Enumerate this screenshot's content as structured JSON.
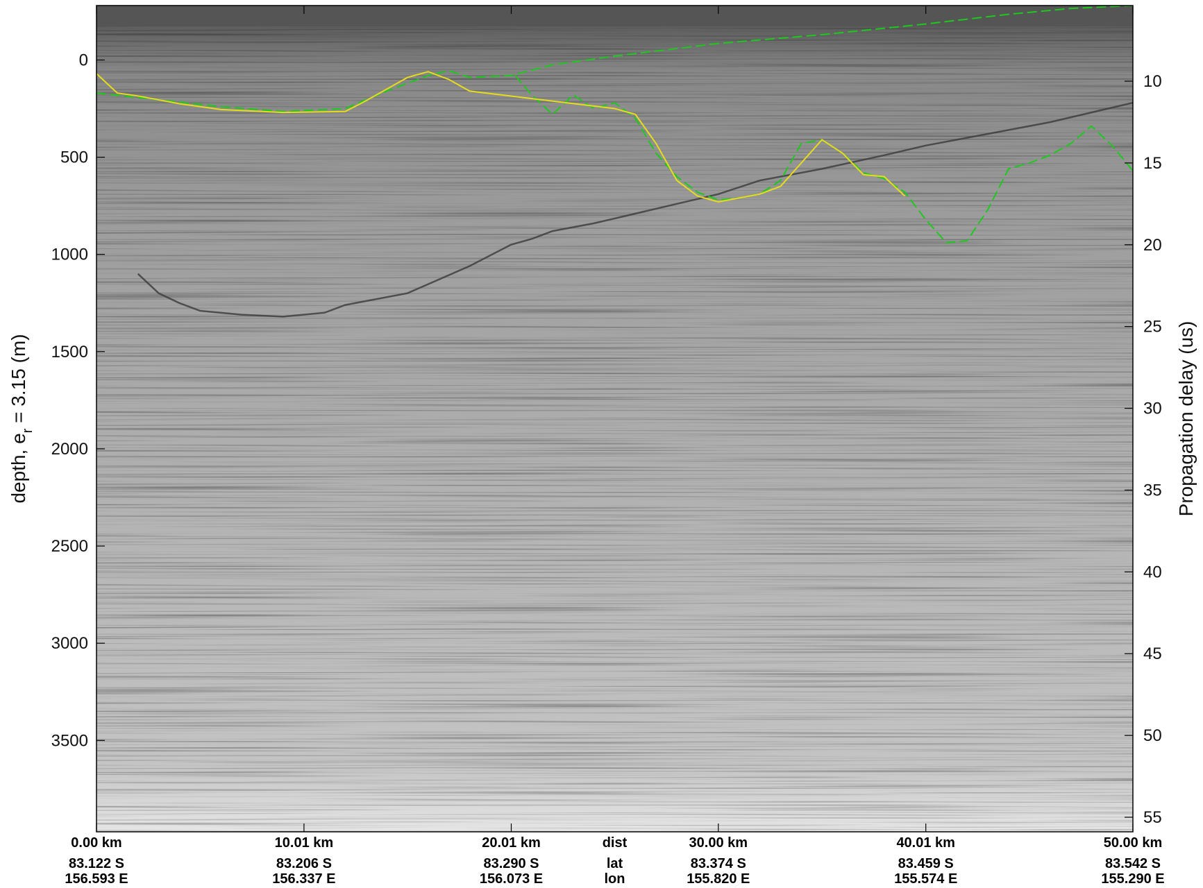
{
  "chart_data": {
    "type": "radargram",
    "left_axis": {
      "label_main": "depth, e",
      "label_sub": "r",
      "label_tail": " = 3.15 (m)",
      "range": [
        -280,
        3970
      ],
      "ticks": [
        0,
        500,
        1000,
        1500,
        2000,
        2500,
        3000,
        3500
      ],
      "tick_labels": [
        "0",
        "500",
        "1000",
        "1500",
        "2000",
        "2500",
        "3000",
        "3500"
      ]
    },
    "right_axis": {
      "label": "Propagation delay (us)",
      "ticks": [
        10,
        15,
        20,
        25,
        30,
        35,
        40,
        45,
        50,
        55
      ],
      "tick_labels": [
        "10",
        "15",
        "20",
        "25",
        "30",
        "35",
        "40",
        "45",
        "50",
        "55"
      ]
    },
    "bottom_axis": {
      "distance_range_km": [
        0,
        50
      ],
      "row_names": [
        "dist",
        "lat",
        "lon"
      ],
      "ticks": [
        {
          "km": 0.0,
          "dist": "0.00 km",
          "lat": "83.122 S",
          "lon": "156.593 E"
        },
        {
          "km": 10.01,
          "dist": "10.01 km",
          "lat": "83.206 S",
          "lon": "156.337 E"
        },
        {
          "km": 20.01,
          "dist": "20.01 km",
          "lat": "83.290 S",
          "lon": "156.073 E"
        },
        {
          "km": 30.0,
          "dist": "30.00 km",
          "lat": "83.374 S",
          "lon": "155.820 E"
        },
        {
          "km": 40.01,
          "dist": "40.01 km",
          "lat": "83.459 S",
          "lon": "155.574 E"
        },
        {
          "km": 50.0,
          "dist": "50.00 km",
          "lat": "83.542 S",
          "lon": "155.290 E"
        }
      ]
    },
    "colormap": "grayscale",
    "series": [
      {
        "color": "#1ec81e",
        "dash": "dashed",
        "points": [
          [
            0,
            170
          ],
          [
            3,
            205
          ],
          [
            6,
            240
          ],
          [
            9,
            265
          ],
          [
            12,
            250
          ],
          [
            14,
            160
          ],
          [
            16,
            80
          ],
          [
            17,
            55
          ],
          [
            18,
            90
          ],
          [
            20,
            80
          ],
          [
            22,
            25
          ],
          [
            25,
            -20
          ],
          [
            30,
            -85
          ],
          [
            35,
            -130
          ],
          [
            40,
            -185
          ],
          [
            44,
            -235
          ],
          [
            47,
            -265
          ],
          [
            50,
            -280
          ]
        ]
      },
      {
        "color": "#1ec81e",
        "dash": "dashed",
        "points": [
          [
            20.2,
            80
          ],
          [
            21,
            180
          ],
          [
            22,
            280
          ],
          [
            23,
            180
          ],
          [
            24,
            250
          ],
          [
            25,
            220
          ],
          [
            26,
            300
          ],
          [
            27,
            480
          ],
          [
            28,
            600
          ],
          [
            29,
            680
          ],
          [
            30,
            720
          ],
          [
            31,
            710
          ],
          [
            32,
            690
          ],
          [
            33,
            620
          ],
          [
            34,
            430
          ],
          [
            35,
            410
          ],
          [
            36,
            480
          ],
          [
            37,
            580
          ],
          [
            38,
            610
          ],
          [
            39,
            680
          ],
          [
            40,
            820
          ],
          [
            41,
            940
          ],
          [
            42,
            930
          ],
          [
            43,
            770
          ],
          [
            44,
            560
          ],
          [
            45,
            530
          ],
          [
            46,
            490
          ],
          [
            47,
            430
          ],
          [
            48,
            340
          ],
          [
            49,
            440
          ],
          [
            50,
            570
          ]
        ]
      },
      {
        "color": "#e6dc1e",
        "dash": "solid",
        "points": [
          [
            0,
            70
          ],
          [
            1,
            170
          ],
          [
            2,
            185
          ],
          [
            4,
            225
          ],
          [
            6,
            255
          ],
          [
            9,
            270
          ],
          [
            12,
            265
          ],
          [
            13,
            210
          ],
          [
            15,
            90
          ],
          [
            16,
            60
          ],
          [
            17,
            100
          ],
          [
            18,
            160
          ],
          [
            25,
            250
          ],
          [
            26,
            280
          ],
          [
            27,
            430
          ],
          [
            28,
            620
          ],
          [
            29,
            700
          ],
          [
            30,
            730
          ],
          [
            31,
            710
          ],
          [
            32,
            690
          ],
          [
            33,
            650
          ],
          [
            35,
            410
          ],
          [
            36,
            480
          ],
          [
            37,
            590
          ],
          [
            38,
            600
          ],
          [
            39,
            700
          ]
        ]
      }
    ],
    "reflectors": [
      {
        "points": [
          [
            2,
            1100
          ],
          [
            3,
            1200
          ],
          [
            4,
            1250
          ],
          [
            5,
            1290
          ],
          [
            7,
            1310
          ],
          [
            9,
            1320
          ],
          [
            11,
            1300
          ],
          [
            12,
            1260
          ],
          [
            15,
            1200
          ],
          [
            18,
            1060
          ],
          [
            20,
            950
          ],
          [
            21,
            920
          ],
          [
            22,
            880
          ],
          [
            24,
            840
          ],
          [
            26,
            790
          ],
          [
            28,
            740
          ],
          [
            30,
            690
          ],
          [
            32,
            620
          ],
          [
            35,
            560
          ],
          [
            38,
            490
          ],
          [
            40,
            440
          ],
          [
            43,
            380
          ],
          [
            46,
            320
          ],
          [
            48,
            270
          ],
          [
            50,
            220
          ]
        ]
      }
    ]
  }
}
